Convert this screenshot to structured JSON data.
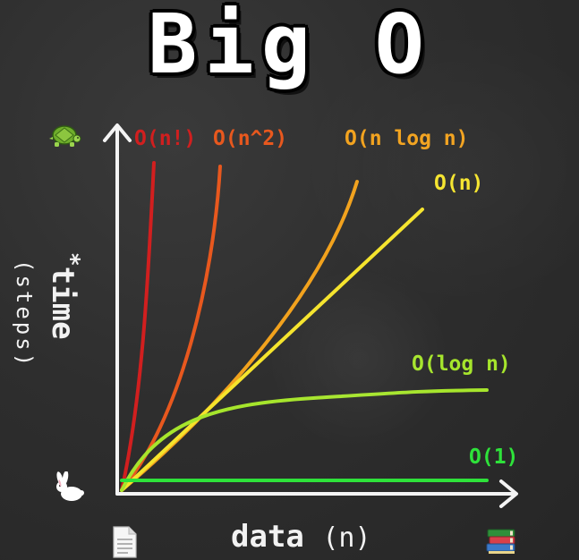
{
  "title": "Big O",
  "y_axis": {
    "label": "time",
    "marker": "*",
    "sublabel": "(steps)"
  },
  "x_axis": {
    "label": "data",
    "sublabel": "(n)"
  },
  "icons": {
    "y_top": "turtle-icon",
    "y_bottom": "rabbit-icon",
    "x_left": "document-icon",
    "x_right": "books-icon"
  },
  "chart_data": {
    "type": "line",
    "title": "Big O",
    "xlabel": "data (n)",
    "ylabel": "time (steps)",
    "series": [
      {
        "name": "O(n!)",
        "color": "#d11f1f"
      },
      {
        "name": "O(n^2)",
        "color": "#e8581e"
      },
      {
        "name": "O(n log n)",
        "color": "#f2a21d"
      },
      {
        "name": "O(n)",
        "color": "#f5e42c"
      },
      {
        "name": "O(log n)",
        "color": "#a6e52c"
      },
      {
        "name": "O(1)",
        "color": "#2ee23a"
      }
    ]
  }
}
